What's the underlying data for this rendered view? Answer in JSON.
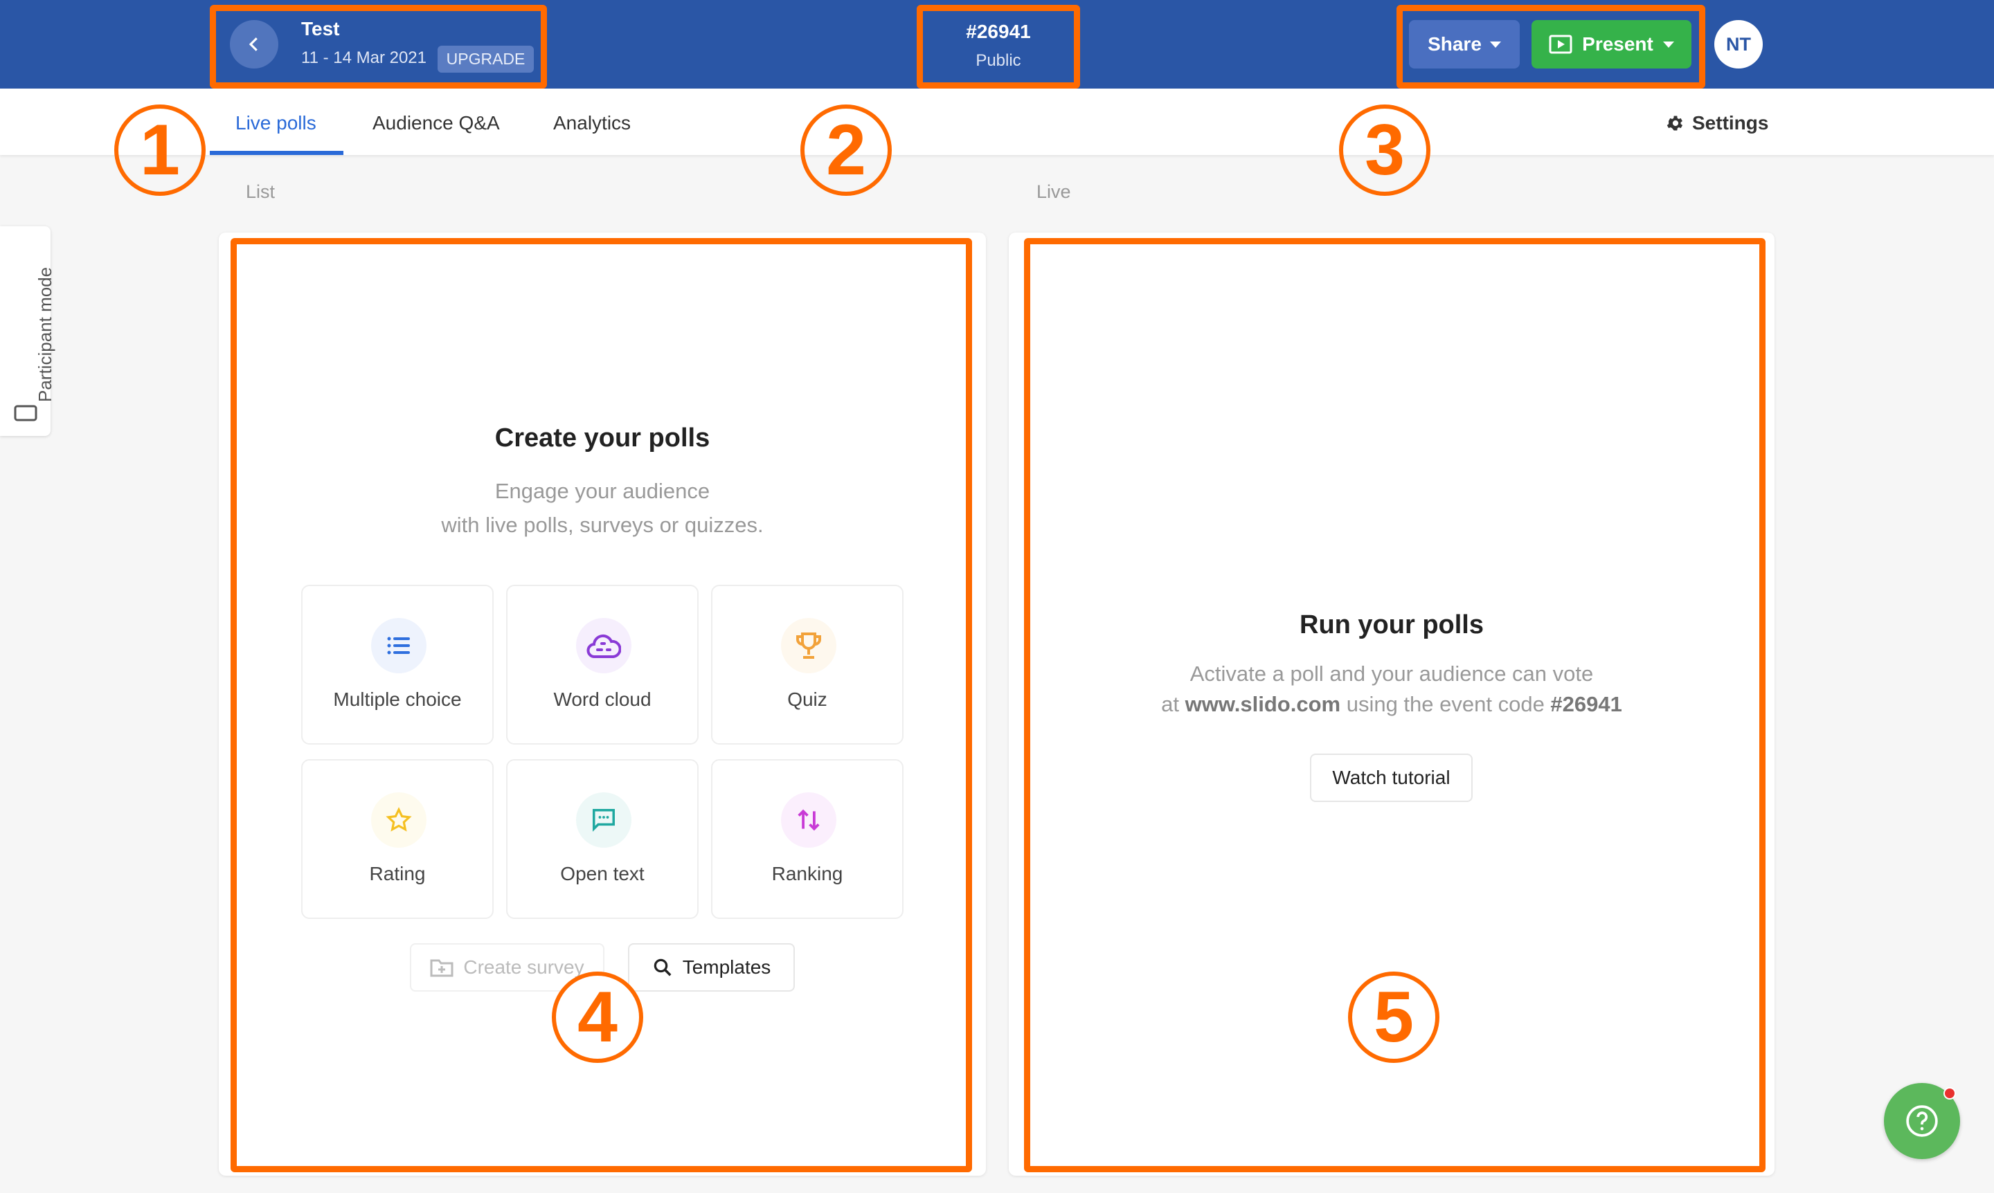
{
  "header": {
    "event_title": "Test",
    "event_dates": "11 - 14 Mar 2021",
    "upgrade_label": "UPGRADE",
    "event_code": "#26941",
    "visibility": "Public",
    "share_label": "Share",
    "present_label": "Present",
    "avatar_initials": "NT"
  },
  "tabs": [
    {
      "label": "Live polls",
      "active": true
    },
    {
      "label": "Audience Q&A"
    },
    {
      "label": "Analytics"
    }
  ],
  "settings_label": "Settings",
  "sidebar": {
    "participant_mode_label": "Participant mode"
  },
  "list_section": {
    "label": "List",
    "title": "Create your polls",
    "subtitle_line1": "Engage your audience",
    "subtitle_line2": "with live polls, surveys or quizzes.",
    "poll_types": [
      {
        "label": "Multiple choice",
        "icon": "list-icon",
        "color": "#2f6fde"
      },
      {
        "label": "Word cloud",
        "icon": "cloud-icon",
        "color": "#8a3ad6"
      },
      {
        "label": "Quiz",
        "icon": "trophy-icon",
        "color": "#f2a23a"
      },
      {
        "label": "Rating",
        "icon": "star-icon",
        "color": "#f5c021"
      },
      {
        "label": "Open text",
        "icon": "chat-icon",
        "color": "#1fa8a0"
      },
      {
        "label": "Ranking",
        "icon": "sort-arrows-icon",
        "color": "#c83ad6"
      }
    ],
    "create_survey_label": "Create survey",
    "templates_label": "Templates"
  },
  "live_section": {
    "label": "Live",
    "title": "Run your polls",
    "text_line1": "Activate a poll and your audience can vote",
    "text_line2_prefix": "at ",
    "text_line2_site": "www.slido.com",
    "text_line2_middle": " using the event code ",
    "text_line2_code": "#26941",
    "watch_tutorial_label": "Watch tutorial"
  },
  "annotations": [
    "1",
    "2",
    "3",
    "4",
    "5"
  ],
  "colors": {
    "header": "#2a56a6",
    "present": "#35b24a",
    "annotation": "#ff6a00",
    "help": "#5cb85c"
  }
}
